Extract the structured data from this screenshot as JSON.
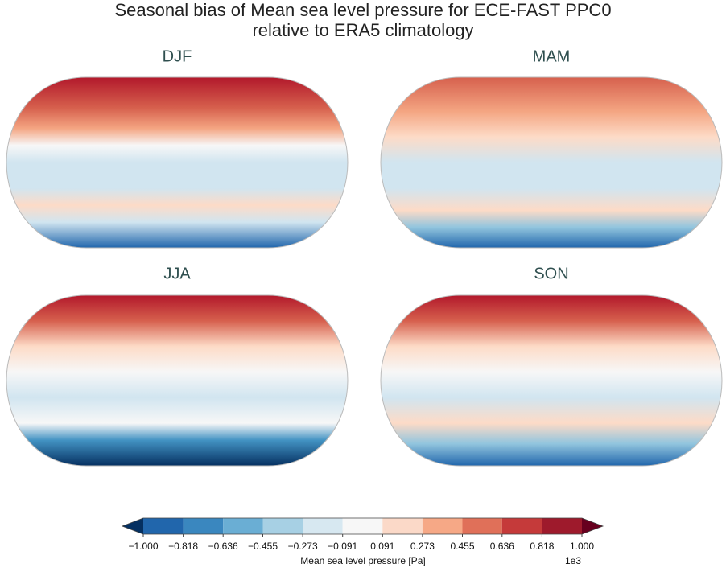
{
  "title": [
    "Seasonal bias of Mean sea level pressure for ECE-FAST PPC0",
    "relative to ERA5 climatology"
  ],
  "panels": [
    {
      "title": "DJF"
    },
    {
      "title": "MAM"
    },
    {
      "title": "JJA"
    },
    {
      "title": "SON"
    }
  ],
  "colorbar": {
    "label": "Mean sea level pressure [Pa]",
    "offset_label": "1e3",
    "extend": "both",
    "under_color": "#053061",
    "over_color": "#67001f",
    "colors": [
      "#2166ac",
      "#3a87bf",
      "#6aaed4",
      "#a7d0e4",
      "#d7e8f1",
      "#f7f7f7",
      "#fbd9c8",
      "#f6a886",
      "#e07059",
      "#c53a3a",
      "#9e1a2c"
    ],
    "ticks": [
      {
        "value": -1.0,
        "label": "−1.000"
      },
      {
        "value": -0.818,
        "label": "−0.818"
      },
      {
        "value": -0.636,
        "label": "−0.636"
      },
      {
        "value": -0.455,
        "label": "−0.455"
      },
      {
        "value": -0.273,
        "label": "−0.273"
      },
      {
        "value": -0.091,
        "label": "−0.091"
      },
      {
        "value": 0.091,
        "label": "0.091"
      },
      {
        "value": 0.273,
        "label": "0.273"
      },
      {
        "value": 0.455,
        "label": "0.455"
      },
      {
        "value": 0.636,
        "label": "0.636"
      },
      {
        "value": 0.818,
        "label": "0.818"
      },
      {
        "value": 1.0,
        "label": "1.000"
      }
    ]
  }
}
